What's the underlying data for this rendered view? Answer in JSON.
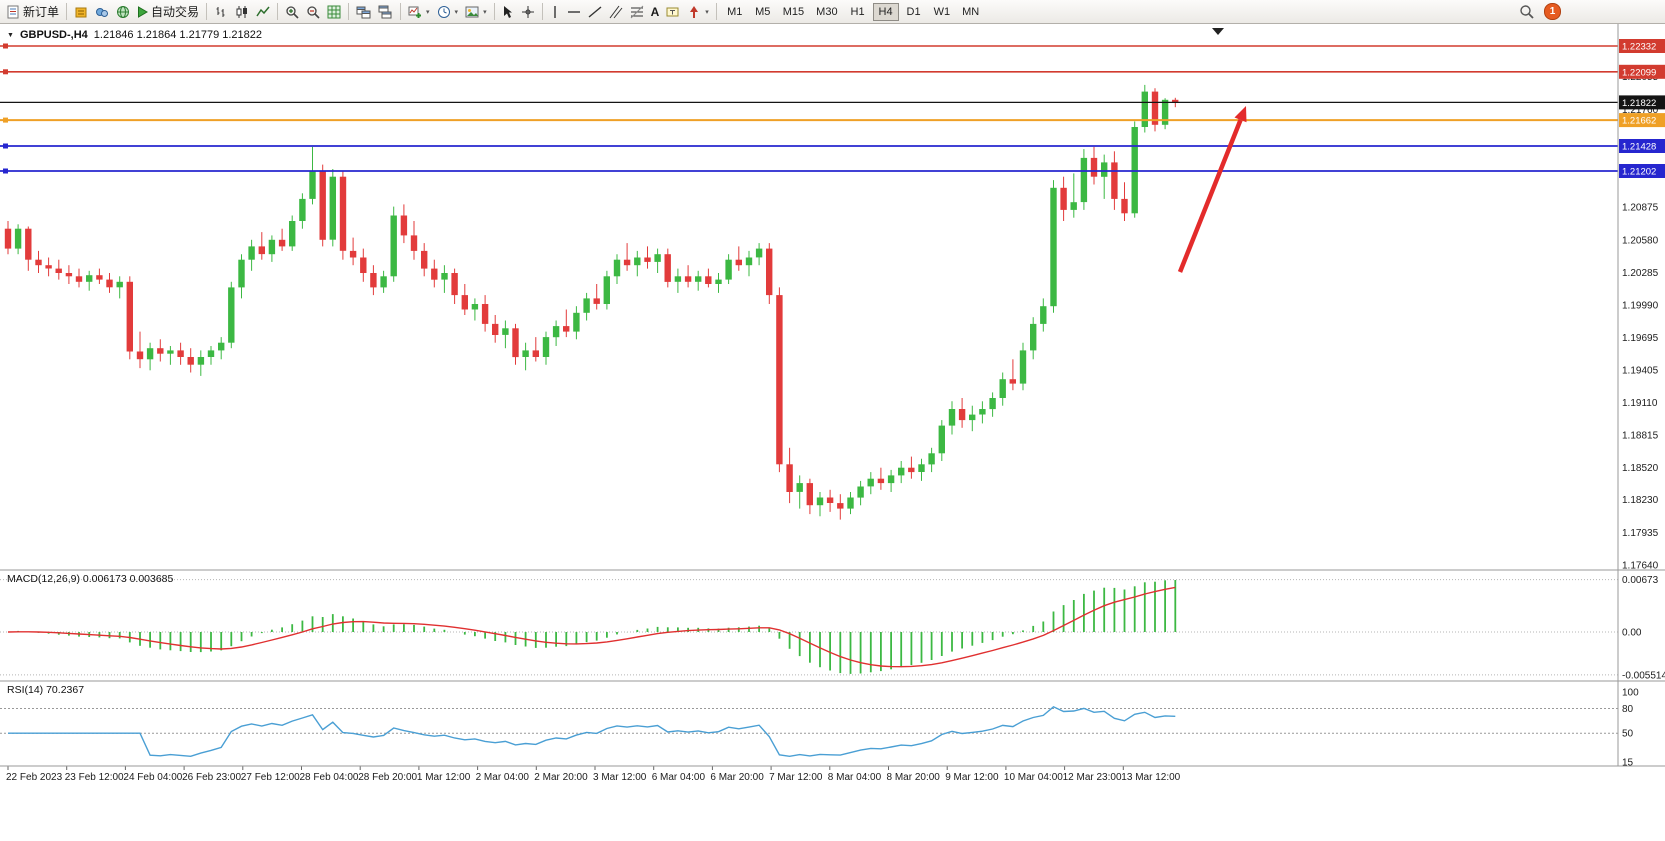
{
  "toolbar": {
    "new_order_label": "新订单",
    "auto_trading_label": "自动交易",
    "text_tool_label": "A",
    "timeframes": [
      "M1",
      "M5",
      "M15",
      "M30",
      "H1",
      "H4",
      "D1",
      "W1",
      "MN"
    ],
    "active_timeframe": "H4",
    "notification_badge": "1",
    "icons": [
      "new-order-icon",
      "chart-window-icon",
      "market-depth-icon",
      "community-icon",
      "autotrading-play-icon",
      "bar-chart-icon",
      "candlestick-chart-icon",
      "line-chart-icon",
      "zoom-in-icon",
      "zoom-out-icon",
      "indicators-grid-icon",
      "tile-windows-icon",
      "cascade-windows-icon",
      "add-indicator-icon",
      "periods-clock-icon",
      "templates-icon",
      "cursor-icon",
      "crosshair-icon",
      "vertical-line-icon",
      "horizontal-line-icon",
      "trendline-icon",
      "channel-icon",
      "fibonacci-icon",
      "text-icon",
      "label-icon",
      "arrow-tool-icon",
      "search-icon",
      "notification-icon"
    ]
  },
  "chart_header": {
    "symbol": "GBPUSD-,H4",
    "ohlc": "1.21846 1.21864 1.21779 1.21822"
  },
  "price_lines": [
    {
      "price": "1.22332",
      "color": "#d23b2f",
      "width": 1.6,
      "marker": true
    },
    {
      "price": "1.22099",
      "color": "#d23b2f",
      "width": 1.6,
      "marker": true
    },
    {
      "price": "1.21822",
      "color": "#141414",
      "width": 1.2,
      "marker": false
    },
    {
      "price": "1.21662",
      "color": "#efa026",
      "width": 2,
      "marker": true
    },
    {
      "price": "1.21428",
      "color": "#2626cf",
      "width": 1.8,
      "marker": true
    },
    {
      "price": "1.21202",
      "color": "#2626cf",
      "width": 1.8,
      "marker": true
    }
  ],
  "macd": {
    "label": "MACD(12,26,9) 0.006173 0.003685",
    "params": [
      12,
      26,
      9
    ],
    "value": 0.006173,
    "signal_value": 0.003685,
    "scale_top": "0.00673",
    "scale_zero": "0.00",
    "scale_bottom": "-0.005514"
  },
  "rsi": {
    "label": "RSI(14) 70.2367",
    "period": 14,
    "value": 70.2367,
    "scale": [
      "100",
      "80",
      "50",
      "15"
    ],
    "levels": [
      80,
      50
    ]
  },
  "annotations": {
    "trend_arrow_color": "#e32b2b"
  },
  "chart_data": {
    "type": "candlestick",
    "symbol": "GBPUSD",
    "timeframe": "H4",
    "up_color": "#3cb843",
    "down_color": "#e23b3b",
    "hlines": [
      1.22332,
      1.22099,
      1.21822,
      1.21662,
      1.21428,
      1.21202
    ],
    "y_ticks": [
      "1.22055",
      "1.21760",
      "1.20875",
      "1.20580",
      "1.20285",
      "1.19990",
      "1.19695",
      "1.19405",
      "1.19110",
      "1.18815",
      "1.18520",
      "1.18230",
      "1.17935",
      "1.17640"
    ],
    "x_labels": [
      "22 Feb 2023",
      "23 Feb 12:00",
      "24 Feb 04:00",
      "26 Feb 23:00",
      "27 Feb 12:00",
      "28 Feb 04:00",
      "28 Feb 20:00",
      "1 Mar 12:00",
      "2 Mar 04:00",
      "2 Mar 20:00",
      "3 Mar 12:00",
      "6 Mar 04:00",
      "6 Mar 20:00",
      "7 Mar 12:00",
      "8 Mar 04:00",
      "8 Mar 20:00",
      "9 Mar 12:00",
      "10 Mar 04:00",
      "12 Mar 23:00",
      "13 Mar 12:00"
    ],
    "candles": [
      [
        1.2068,
        1.2075,
        1.2045,
        1.205
      ],
      [
        1.205,
        1.2072,
        1.2045,
        1.2068
      ],
      [
        1.2068,
        1.207,
        1.203,
        1.204
      ],
      [
        1.204,
        1.2048,
        1.2028,
        1.2035
      ],
      [
        1.2035,
        1.2042,
        1.2025,
        1.2032
      ],
      [
        1.2032,
        1.204,
        1.2022,
        1.2028
      ],
      [
        1.2028,
        1.2035,
        1.2018,
        1.2025
      ],
      [
        1.2025,
        1.2032,
        1.2015,
        1.202
      ],
      [
        1.202,
        1.203,
        1.2012,
        1.2026
      ],
      [
        1.2026,
        1.2032,
        1.2018,
        1.2022
      ],
      [
        1.2022,
        1.2028,
        1.201,
        1.2015
      ],
      [
        1.2015,
        1.2025,
        1.2005,
        1.202
      ],
      [
        1.202,
        1.2025,
        1.195,
        1.1957
      ],
      [
        1.1957,
        1.1975,
        1.1942,
        1.195
      ],
      [
        1.195,
        1.1965,
        1.194,
        1.196
      ],
      [
        1.196,
        1.1968,
        1.1948,
        1.1955
      ],
      [
        1.1955,
        1.1962,
        1.1945,
        1.1958
      ],
      [
        1.1958,
        1.1965,
        1.1945,
        1.1952
      ],
      [
        1.1952,
        1.196,
        1.1938,
        1.1945
      ],
      [
        1.1945,
        1.1958,
        1.1935,
        1.1952
      ],
      [
        1.1952,
        1.1962,
        1.1945,
        1.1958
      ],
      [
        1.1958,
        1.197,
        1.195,
        1.1965
      ],
      [
        1.1965,
        1.202,
        1.196,
        1.2015
      ],
      [
        1.2015,
        1.2045,
        1.2005,
        1.204
      ],
      [
        1.204,
        1.2058,
        1.203,
        1.2052
      ],
      [
        1.2052,
        1.2065,
        1.204,
        1.2045
      ],
      [
        1.2045,
        1.2062,
        1.2038,
        1.2058
      ],
      [
        1.2058,
        1.2068,
        1.2048,
        1.2052
      ],
      [
        1.2052,
        1.208,
        1.2048,
        1.2075
      ],
      [
        1.2075,
        1.21,
        1.2068,
        1.2095
      ],
      [
        1.2095,
        1.2142,
        1.209,
        1.212
      ],
      [
        1.212,
        1.2126,
        1.2052,
        1.2058
      ],
      [
        1.2058,
        1.2122,
        1.2052,
        1.2115
      ],
      [
        1.2115,
        1.212,
        1.204,
        1.2048
      ],
      [
        1.2048,
        1.206,
        1.2035,
        1.2042
      ],
      [
        1.2042,
        1.205,
        1.202,
        1.2028
      ],
      [
        1.2028,
        1.2035,
        1.2008,
        1.2015
      ],
      [
        1.2015,
        1.203,
        1.201,
        1.2025
      ],
      [
        1.2025,
        1.2088,
        1.202,
        1.208
      ],
      [
        1.208,
        1.209,
        1.2055,
        1.2062
      ],
      [
        1.2062,
        1.2075,
        1.204,
        1.2048
      ],
      [
        1.2048,
        1.2055,
        1.2025,
        1.2032
      ],
      [
        1.2032,
        1.204,
        1.2015,
        1.2022
      ],
      [
        1.2022,
        1.2035,
        1.201,
        1.2028
      ],
      [
        1.2028,
        1.2032,
        1.2,
        1.2008
      ],
      [
        1.2008,
        1.2018,
        1.199,
        1.1995
      ],
      [
        1.1995,
        1.2005,
        1.1985,
        1.2
      ],
      [
        1.2,
        1.2008,
        1.1975,
        1.1982
      ],
      [
        1.1982,
        1.199,
        1.1965,
        1.1972
      ],
      [
        1.1972,
        1.1985,
        1.196,
        1.1978
      ],
      [
        1.1978,
        1.1982,
        1.1945,
        1.1952
      ],
      [
        1.1952,
        1.1965,
        1.194,
        1.1958
      ],
      [
        1.1958,
        1.197,
        1.1948,
        1.1952
      ],
      [
        1.1952,
        1.1975,
        1.1945,
        1.197
      ],
      [
        1.197,
        1.1985,
        1.1962,
        1.198
      ],
      [
        1.198,
        1.1995,
        1.197,
        1.1975
      ],
      [
        1.1975,
        1.1998,
        1.1968,
        1.1992
      ],
      [
        1.1992,
        1.201,
        1.1985,
        1.2005
      ],
      [
        1.2005,
        1.2018,
        1.1995,
        1.2
      ],
      [
        1.2,
        1.203,
        1.1995,
        1.2025
      ],
      [
        1.2025,
        1.2045,
        1.2018,
        1.204
      ],
      [
        1.204,
        1.2055,
        1.203,
        1.2035
      ],
      [
        1.2035,
        1.2048,
        1.2025,
        1.2042
      ],
      [
        1.2042,
        1.2052,
        1.2032,
        1.2038
      ],
      [
        1.2038,
        1.205,
        1.2028,
        1.2045
      ],
      [
        1.2045,
        1.205,
        1.2015,
        1.202
      ],
      [
        1.202,
        1.2032,
        1.201,
        1.2025
      ],
      [
        1.2025,
        1.2035,
        1.2015,
        1.202
      ],
      [
        1.202,
        1.203,
        1.2012,
        1.2025
      ],
      [
        1.2025,
        1.2032,
        1.2015,
        1.2018
      ],
      [
        1.2018,
        1.2028,
        1.201,
        1.2022
      ],
      [
        1.2022,
        1.2045,
        1.2018,
        1.204
      ],
      [
        1.204,
        1.2052,
        1.203,
        1.2035
      ],
      [
        1.2035,
        1.2048,
        1.2025,
        1.2042
      ],
      [
        1.2042,
        1.2055,
        1.2035,
        1.205
      ],
      [
        1.205,
        1.2055,
        1.2,
        1.2008
      ],
      [
        1.2008,
        1.2015,
        1.1848,
        1.1855
      ],
      [
        1.1855,
        1.187,
        1.182,
        1.183
      ],
      [
        1.183,
        1.1845,
        1.1815,
        1.1838
      ],
      [
        1.1838,
        1.1842,
        1.181,
        1.1818
      ],
      [
        1.1818,
        1.183,
        1.1808,
        1.1825
      ],
      [
        1.1825,
        1.1832,
        1.1812,
        1.182
      ],
      [
        1.182,
        1.1828,
        1.1805,
        1.1815
      ],
      [
        1.1815,
        1.183,
        1.181,
        1.1825
      ],
      [
        1.1825,
        1.184,
        1.1818,
        1.1835
      ],
      [
        1.1835,
        1.1848,
        1.1828,
        1.1842
      ],
      [
        1.1842,
        1.1852,
        1.1832,
        1.1838
      ],
      [
        1.1838,
        1.185,
        1.183,
        1.1845
      ],
      [
        1.1845,
        1.1858,
        1.1838,
        1.1852
      ],
      [
        1.1852,
        1.1862,
        1.1842,
        1.1848
      ],
      [
        1.1848,
        1.186,
        1.184,
        1.1855
      ],
      [
        1.1855,
        1.187,
        1.1848,
        1.1865
      ],
      [
        1.1865,
        1.1895,
        1.1858,
        1.189
      ],
      [
        1.189,
        1.1912,
        1.1882,
        1.1905
      ],
      [
        1.1905,
        1.1915,
        1.1888,
        1.1895
      ],
      [
        1.1895,
        1.1908,
        1.1885,
        1.19
      ],
      [
        1.19,
        1.1912,
        1.1892,
        1.1905
      ],
      [
        1.1905,
        1.192,
        1.1898,
        1.1915
      ],
      [
        1.1915,
        1.1938,
        1.1908,
        1.1932
      ],
      [
        1.1932,
        1.195,
        1.1922,
        1.1928
      ],
      [
        1.1928,
        1.1965,
        1.1922,
        1.1958
      ],
      [
        1.1958,
        1.1988,
        1.195,
        1.1982
      ],
      [
        1.1982,
        1.2005,
        1.1975,
        1.1998
      ],
      [
        1.1998,
        1.2112,
        1.1992,
        1.2105
      ],
      [
        1.2105,
        1.2115,
        1.2075,
        1.2085
      ],
      [
        1.2085,
        1.2118,
        1.2078,
        1.2092
      ],
      [
        1.2092,
        1.214,
        1.2085,
        1.2132
      ],
      [
        1.2132,
        1.2142,
        1.2108,
        1.2115
      ],
      [
        1.2115,
        1.2135,
        1.2095,
        1.2128
      ],
      [
        1.2128,
        1.2138,
        1.2085,
        1.2095
      ],
      [
        1.2095,
        1.211,
        1.2075,
        1.2082
      ],
      [
        1.2082,
        1.2165,
        1.2078,
        1.216
      ],
      [
        1.216,
        1.2198,
        1.2155,
        1.2192
      ],
      [
        1.2192,
        1.2195,
        1.2156,
        1.2162
      ],
      [
        1.2162,
        1.2186,
        1.2158,
        1.21846
      ],
      [
        1.21846,
        1.21864,
        1.21779,
        1.21822
      ]
    ]
  }
}
